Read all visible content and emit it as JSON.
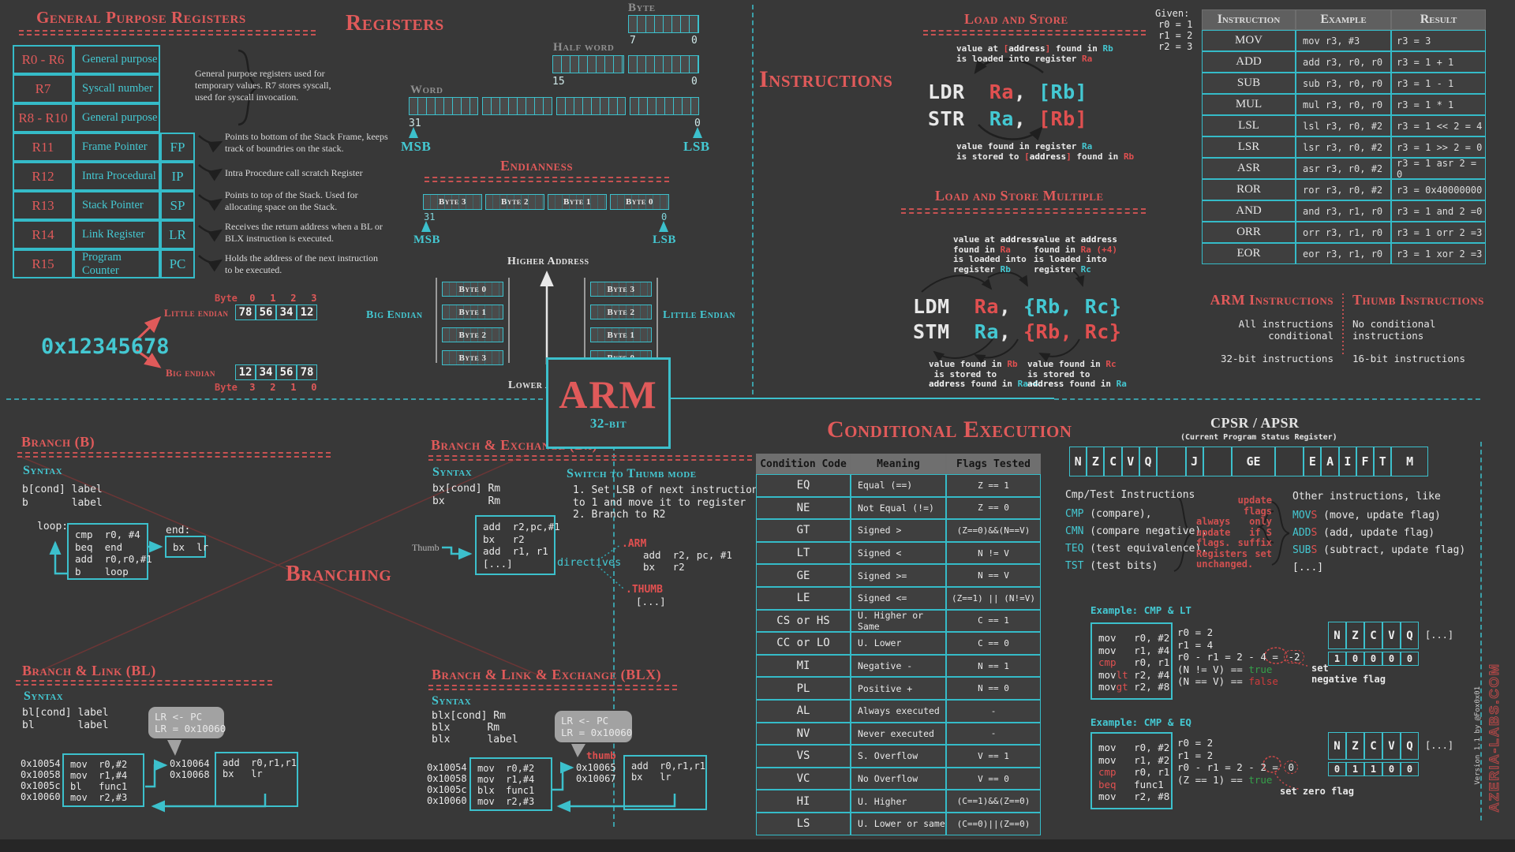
{
  "gp": {
    "title": "General Purpose Registers",
    "rows": [
      [
        "R0 - R6",
        "General purpose",
        ""
      ],
      [
        "R7",
        "Syscall number",
        ""
      ],
      [
        "R8 - R10",
        "General purpose",
        ""
      ],
      [
        "R11",
        "Frame Pointer",
        "FP"
      ],
      [
        "R12",
        "Intra Procedural",
        "IP"
      ],
      [
        "R13",
        "Stack Pointer",
        "SP"
      ],
      [
        "R14",
        "Link Register",
        "LR"
      ],
      [
        "R15",
        "Program Counter",
        "PC"
      ]
    ],
    "brace_note": "General purpose registers used for temporary values. R7 stores syscall, used for syscall invocation.",
    "notes": [
      "Points to bottom of the Stack Frame, keeps track of boundries on the stack.",
      "Intra Procedure call scratch Register",
      "Points to top of the Stack. Used for allocating space on the Stack.",
      "Receives the return address when a BL or BLX instruction is executed.",
      "Holds the address of the next instruction to be executed."
    ]
  },
  "registers": {
    "title": "Registers",
    "byte_label": "Byte",
    "byte_hi": "7",
    "byte_lo": "0",
    "half_label": "Half word",
    "half_hi": "15",
    "half_lo": "0",
    "word_label": "Word",
    "word_hi": "31",
    "word_lo": "0",
    "msb": "MSB",
    "lsb": "LSB"
  },
  "endianness": {
    "title": "Endianness",
    "reg_bytes": [
      "Byte 3",
      "Byte 2",
      "Byte 1",
      "Byte 0"
    ],
    "hi": "31",
    "lo": "0",
    "msb": "MSB",
    "lsb": "LSB",
    "higher": "Higher Address",
    "lower": "Lower Address",
    "big_label": "Big Endian",
    "little_label": "Little Endian",
    "big_stack": [
      "Byte 0",
      "Byte 1",
      "Byte 2",
      "Byte 3"
    ],
    "little_stack": [
      "Byte 3",
      "Byte 2",
      "Byte 1",
      "Byte 0"
    ],
    "value": "0x12345678",
    "le_title": "Little endian",
    "be_title": "Big endian",
    "byte_word_top": "Byte",
    "byte_word_bottom": "Byte",
    "le_indices": [
      "0",
      "1",
      "2",
      "3"
    ],
    "le_bytes": [
      "78",
      "56",
      "34",
      "12"
    ],
    "be_bytes": [
      "12",
      "34",
      "56",
      "78"
    ],
    "be_indices": [
      "3",
      "2",
      "1",
      "0"
    ]
  },
  "instructions": {
    "section_title": "Instructions",
    "given": {
      "label": "Given:",
      "lines": [
        "r0 = 1",
        "r1 = 2",
        "r2 = 3"
      ]
    },
    "ls": {
      "title": "Load and Store",
      "note_top": [
        [
          {
            "t": "value at ",
            "c": "w"
          },
          {
            "t": "[",
            "c": "r"
          },
          {
            "t": "address",
            "c": "b"
          },
          {
            "t": "]",
            "c": "r"
          },
          {
            "t": " found in ",
            "c": "w"
          },
          {
            "t": "Rb",
            "c": "c"
          }
        ],
        [
          {
            "t": "is loaded into register ",
            "c": "w"
          },
          {
            "t": "Ra",
            "c": "r"
          }
        ]
      ],
      "ldr": [
        {
          "t": "LDR  ",
          "c": "w"
        },
        {
          "t": "Ra",
          "c": "r"
        },
        {
          "t": ", ",
          "c": "w"
        },
        {
          "t": "[Rb]",
          "c": "c"
        }
      ],
      "str": [
        {
          "t": "STR  ",
          "c": "w"
        },
        {
          "t": "Ra",
          "c": "c"
        },
        {
          "t": ", ",
          "c": "w"
        },
        {
          "t": "[Rb]",
          "c": "r"
        }
      ],
      "note_bottom": [
        [
          {
            "t": "value found in register ",
            "c": "w"
          },
          {
            "t": "Ra",
            "c": "c"
          }
        ],
        [
          {
            "t": "is stored to ",
            "c": "w"
          },
          {
            "t": "[",
            "c": "r"
          },
          {
            "t": "address",
            "c": "b"
          },
          {
            "t": "]",
            "c": "r"
          },
          {
            "t": " found in ",
            "c": "w"
          },
          {
            "t": "Rb",
            "c": "r"
          }
        ]
      ]
    },
    "table": {
      "headers": [
        "Instruction",
        "Example",
        "Result"
      ],
      "rows": [
        [
          "MOV",
          "mov r3, #3",
          "r3 = 3"
        ],
        [
          "ADD",
          "add r3, r0, r0",
          "r3 = 1 + 1"
        ],
        [
          "SUB",
          "sub r3, r0, r0",
          "r3 = 1 - 1"
        ],
        [
          "MUL",
          "mul r3, r0, r0",
          "r3 = 1 * 1"
        ],
        [
          "LSL",
          "lsl r3, r0, #2",
          "r3 = 1 << 2 = 4"
        ],
        [
          "LSR",
          "lsr r3, r0, #2",
          "r3 = 1 >> 2 = 0"
        ],
        [
          "ASR",
          "asr r3, r0, #2",
          "r3 = 1 asr 2 = 0"
        ],
        [
          "ROR",
          "ror r3, r0, #2",
          "r3 = 0x40000000"
        ],
        [
          "AND",
          "and r3, r1, r0",
          "r3 = 1 and 2 =0"
        ],
        [
          "ORR",
          "orr r3, r1, r0",
          "r3 = 1 orr 2 =3"
        ],
        [
          "EOR",
          "eor r3, r1, r0",
          "r3 = 1 xor 2 =3"
        ]
      ]
    },
    "lsm": {
      "title": "Load and Store Multiple",
      "note_tl": [
        [
          {
            "t": "value at ",
            "c": "w"
          },
          {
            "t": "address",
            "c": "b"
          }
        ],
        [
          {
            "t": "found in ",
            "c": "w"
          },
          {
            "t": "Ra",
            "c": "r"
          }
        ],
        [
          {
            "t": "is loaded into",
            "c": "w"
          }
        ],
        [
          {
            "t": "register ",
            "c": "w"
          },
          {
            "t": "Rb",
            "c": "c"
          }
        ]
      ],
      "note_tr": [
        [
          {
            "t": "value at ",
            "c": "w"
          },
          {
            "t": "address",
            "c": "b"
          }
        ],
        [
          {
            "t": "found in ",
            "c": "w"
          },
          {
            "t": "Ra",
            "c": "r"
          },
          {
            "t": " (+4)",
            "c": "r"
          }
        ],
        [
          {
            "t": "is loaded into",
            "c": "w"
          }
        ],
        [
          {
            "t": "register ",
            "c": "w"
          },
          {
            "t": "Rc",
            "c": "c"
          }
        ]
      ],
      "ldm": [
        {
          "t": "LDM  ",
          "c": "w"
        },
        {
          "t": "Ra",
          "c": "r"
        },
        {
          "t": ", ",
          "c": "w"
        },
        {
          "t": "{Rb, Rc}",
          "c": "c"
        }
      ],
      "stm": [
        {
          "t": "STM  ",
          "c": "w"
        },
        {
          "t": "Ra",
          "c": "c"
        },
        {
          "t": ", ",
          "c": "w"
        },
        {
          "t": "{Rb, Rc}",
          "c": "r"
        }
      ],
      "note_bl": [
        [
          {
            "t": "value found in ",
            "c": "w"
          },
          {
            "t": "Rb",
            "c": "r"
          }
        ],
        [
          {
            "t": " is stored to",
            "c": "w"
          }
        ],
        [
          {
            "t": "address",
            "c": "b"
          },
          {
            "t": " found in ",
            "c": "w"
          },
          {
            "t": "Ra+4",
            "c": "c"
          }
        ]
      ],
      "note_br": [
        [
          {
            "t": "value found in ",
            "c": "w"
          },
          {
            "t": "Rc",
            "c": "r"
          }
        ],
        [
          {
            "t": "is stored to",
            "c": "w"
          }
        ],
        [
          {
            "t": "address",
            "c": "b"
          },
          {
            "t": " found in ",
            "c": "w"
          },
          {
            "t": "Ra",
            "c": "c"
          }
        ]
      ]
    },
    "families": {
      "arm_title": "ARM Instructions",
      "arm_lines": [
        "All instructions conditional",
        "32-bit instructions"
      ],
      "thumb_title": "Thumb Instructions",
      "thumb_lines": [
        "No conditional instructions",
        "16-bit instructions"
      ]
    }
  },
  "center": {
    "name": "ARM",
    "sub": "32-bit"
  },
  "branching": {
    "big_title": "Branching",
    "b": {
      "title": "Branch (B)",
      "syntax_label": "Syntax",
      "syntax": [
        "b[cond] label",
        "b       label"
      ],
      "loop_label": "loop:",
      "end_label": "end:",
      "code": [
        "cmp  r0, #4",
        "beq  end",
        "add  r0,r0,#1",
        "b    loop"
      ],
      "end_code": [
        "bx  lr"
      ]
    },
    "bx": {
      "title": "Branch & Exchange (Bx)",
      "syntax_label": "Syntax",
      "syntax": [
        "bx[cond] Rm",
        "bx       Rm"
      ],
      "thumb_title": "Switch to Thumb mode",
      "steps": [
        "1. Set LSB of next instruction",
        "to 1 and move it to register",
        "2. Branch to R2"
      ],
      "code": [
        "add  r2,pc,#1",
        "bx   r2",
        "add  r1, r1",
        "[...]"
      ],
      "thumb_label": "Thumb",
      "directives_label": "directives",
      "arm_directive": ".ARM",
      "arm_code": [
        "add  r2, pc, #1",
        "bx   r2"
      ],
      "thumb_directive": ".THUMB",
      "thumb_code": [
        "[...]"
      ]
    },
    "bl": {
      "title": "Branch & Link  (BL)",
      "syntax_label": "Syntax",
      "syntax": [
        "bl[cond] label",
        "bl       label"
      ],
      "bubble": [
        "LR <- PC",
        "LR = 0x10060"
      ],
      "addresses": [
        "0x10054",
        "0x10058",
        "0x1005c",
        "0x10060"
      ],
      "code": [
        "mov  r0,#2",
        "mov  r1,#4",
        "bl   func1",
        "mov  r2,#3"
      ],
      "ret_addresses": [
        "0x10064",
        "0x10068"
      ],
      "ret_code": [
        "add  r0,r1,r1",
        "bx   lr"
      ]
    },
    "blx": {
      "title": "Branch & Link & Exchange (BLX)",
      "syntax_label": "Syntax",
      "syntax": [
        "blx[cond] Rm",
        "blx      Rm",
        "blx      label"
      ],
      "bubble": [
        "LR <- PC",
        "LR = 0x10060"
      ],
      "thumb_label": "thumb",
      "addresses": [
        "0x10054",
        "0x10058",
        "0x1005c",
        "0x10060"
      ],
      "code": [
        "mov  r0,#2",
        "mov  r1,#4",
        "blx  func1",
        "mov  r2,#3"
      ],
      "ret_addresses": [
        "0x10065",
        "0x10067"
      ],
      "ret_code": [
        "add  r0,r1,r1",
        "bx   lr"
      ]
    }
  },
  "conditional": {
    "title": "Conditional Execution",
    "table": {
      "headers": [
        "Condition Code",
        "Meaning",
        "Flags Tested"
      ],
      "rows": [
        [
          "EQ",
          "Equal (==)",
          "Z == 1"
        ],
        [
          "NE",
          "Not Equal (!=)",
          "Z == 0"
        ],
        [
          "GT",
          "Signed >",
          "(Z==0)&&(N==V)"
        ],
        [
          "LT",
          "Signed <",
          "N != V"
        ],
        [
          "GE",
          "Signed >=",
          "N == V"
        ],
        [
          "LE",
          "Signed <=",
          "(Z==1) || (N!=V)"
        ],
        [
          "CS or HS",
          "U. Higher or Same",
          "C == 1"
        ],
        [
          "CC or LO",
          "U. Lower",
          "C == 0"
        ],
        [
          "MI",
          "Negative -",
          "N == 1"
        ],
        [
          "PL",
          "Positive +",
          "N == 0"
        ],
        [
          "AL",
          "Always executed",
          "-"
        ],
        [
          "NV",
          "Never executed",
          "-"
        ],
        [
          "VS",
          "S. Overflow",
          "V == 1"
        ],
        [
          "VC",
          "No Overflow",
          "V == 0"
        ],
        [
          "HI",
          "U. Higher",
          "(C==1)&&(Z==0)"
        ],
        [
          "LS",
          "U. Lower or same",
          "(C==0)||(Z==0)"
        ]
      ]
    },
    "cpsr": {
      "title": "CPSR / APSR",
      "subtitle": "(Current Program Status Register)",
      "cells": [
        "N",
        "Z",
        "C",
        "V",
        "Q",
        "",
        "J",
        "",
        "GE",
        "",
        "E",
        "A",
        "I",
        "F",
        "T",
        "M"
      ]
    },
    "cmp_block": {
      "title": "Cmp/Test Instructions",
      "lines": [
        [
          {
            "t": "CMP",
            "c": "c"
          },
          {
            "t": " (compare),",
            "c": "w"
          }
        ],
        [
          {
            "t": "CMN",
            "c": "c"
          },
          {
            "t": " (compare negative),",
            "c": "w"
          }
        ],
        [
          {
            "t": "TEQ",
            "c": "c"
          },
          {
            "t": " (test equivalence),",
            "c": "w"
          }
        ],
        [
          {
            "t": "TST",
            "c": "c"
          },
          {
            "t": " (test bits)",
            "c": "w"
          }
        ]
      ]
    },
    "always_note": "always update flags. Registers unchanged.",
    "s_note": "update flags only if S suffix set",
    "other_block": {
      "title": "Other instructions, like",
      "lines": [
        [
          {
            "t": "MOV",
            "c": "c"
          },
          {
            "t": "S",
            "c": "r"
          },
          {
            "t": " (move, update flag)",
            "c": "w"
          }
        ],
        [
          {
            "t": "ADD",
            "c": "c"
          },
          {
            "t": "S",
            "c": "r"
          },
          {
            "t": " (add, update flag)",
            "c": "w"
          }
        ],
        [
          {
            "t": "SUB",
            "c": "c"
          },
          {
            "t": "S",
            "c": "r"
          },
          {
            "t": " (subtract, update flag)",
            "c": "w"
          }
        ],
        [
          {
            "t": "[...]",
            "c": "w"
          }
        ]
      ]
    },
    "ex1": {
      "title": "Example: CMP & LT",
      "code": [
        [
          {
            "t": "mov   r0, #2",
            "c": "w"
          }
        ],
        [
          {
            "t": "mov   r1, #4",
            "c": "w"
          }
        ],
        [
          {
            "t": "cmp",
            "c": "r"
          },
          {
            "t": "   r0, r1",
            "c": "w"
          }
        ],
        [
          {
            "t": "mov",
            "c": "w"
          },
          {
            "t": "lt",
            "c": "r"
          },
          {
            "t": " r2, #4",
            "c": "w"
          }
        ],
        [
          {
            "t": "mov",
            "c": "w"
          },
          {
            "t": "gt",
            "c": "r"
          },
          {
            "t": " r2, #8",
            "c": "w"
          }
        ]
      ],
      "result": [
        [
          {
            "t": "r0 = 2",
            "c": "w"
          }
        ],
        [
          {
            "t": "r1 = 4",
            "c": "w"
          }
        ],
        [
          {
            "t": "r0 - r1 = 2 - 4 = ",
            "c": "w"
          },
          {
            "t": "-2",
            "c": "circ"
          }
        ],
        [
          {
            "t": "(N != V) == ",
            "c": "w"
          },
          {
            "t": "true",
            "c": "g"
          }
        ],
        [
          {
            "t": "(N == V) == ",
            "c": "w"
          },
          {
            "t": "false",
            "c": "f"
          }
        ]
      ],
      "set_lines": [
        "set",
        "negative flag"
      ],
      "flags_headers": [
        "N",
        "Z",
        "C",
        "V",
        "Q"
      ],
      "flags_more": "[...]",
      "flags_values": [
        "1",
        "0",
        "0",
        "0",
        "0"
      ]
    },
    "ex2": {
      "title": "Example: CMP & EQ",
      "code": [
        [
          {
            "t": "mov   r0, #2",
            "c": "w"
          }
        ],
        [
          {
            "t": "mov   r1, #2",
            "c": "w"
          }
        ],
        [
          {
            "t": "cmp",
            "c": "r"
          },
          {
            "t": "   r0, r1",
            "c": "w"
          }
        ],
        [
          {
            "t": "beq",
            "c": "r"
          },
          {
            "t": "   func1",
            "c": "w"
          }
        ],
        [
          {
            "t": "mov   r2, #8",
            "c": "w"
          }
        ]
      ],
      "result": [
        [
          {
            "t": "r0 = 2",
            "c": "w"
          }
        ],
        [
          {
            "t": "r1 = 2",
            "c": "w"
          }
        ],
        [
          {
            "t": "r0 - r1 = 2 - 2 = ",
            "c": "w"
          },
          {
            "t": "0",
            "c": "circ"
          }
        ],
        [
          {
            "t": "(Z == 1) == ",
            "c": "w"
          },
          {
            "t": "true",
            "c": "g"
          }
        ]
      ],
      "set_lines": [
        "set zero flag"
      ],
      "flags_headers": [
        "N",
        "Z",
        "C",
        "V",
        "Q"
      ],
      "flags_more": "[...]",
      "flags_values": [
        "0",
        "1",
        "1",
        "0",
        "0"
      ]
    }
  },
  "footer": {
    "site": "AZERIA-LABS.COM",
    "version": "Version 1.1 by @Fox0x01"
  }
}
